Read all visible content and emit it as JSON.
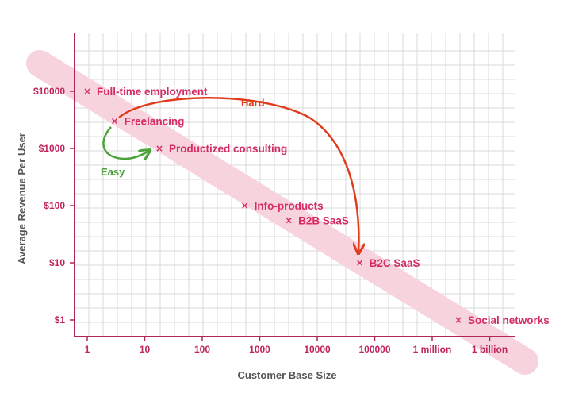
{
  "chart_data": {
    "type": "scatter",
    "title": "",
    "xlabel": "Customer Base Size",
    "ylabel": "Average Revenue Per User",
    "x_scale": "log",
    "y_scale": "log",
    "grid": true,
    "x_ticks": [
      "1",
      "10",
      "100",
      "1000",
      "10000",
      "100000",
      "1 million",
      "1 billion"
    ],
    "y_ticks": [
      "$1",
      "$10",
      "$100",
      "$1000",
      "$10000"
    ],
    "points": [
      {
        "label": "Full-time employment",
        "x": 1,
        "y": 10000
      },
      {
        "label": "Freelancing",
        "x": 3,
        "y": 3000
      },
      {
        "label": "Productized consulting",
        "x": 18,
        "y": 1000
      },
      {
        "label": "Info-products",
        "x": 550,
        "y": 100
      },
      {
        "label": "B2B SaaS",
        "x": 3200,
        "y": 55
      },
      {
        "label": "B2C SaaS",
        "x": 55000,
        "y": 10
      },
      {
        "label": "Social networks",
        "x": 1000000000.0,
        "y": 1
      }
    ],
    "annotations": [
      {
        "text": "Hard",
        "color": "#e03c1c"
      },
      {
        "text": "Easy",
        "color": "#4ba23a"
      }
    ],
    "colors": {
      "accent": "#d42c63",
      "band": "#f7d3dd",
      "axis": "#b0255a",
      "hard_arrow": "#e03c1c",
      "easy_arrow": "#4ba23a",
      "grid": "#d9d9d9"
    }
  }
}
